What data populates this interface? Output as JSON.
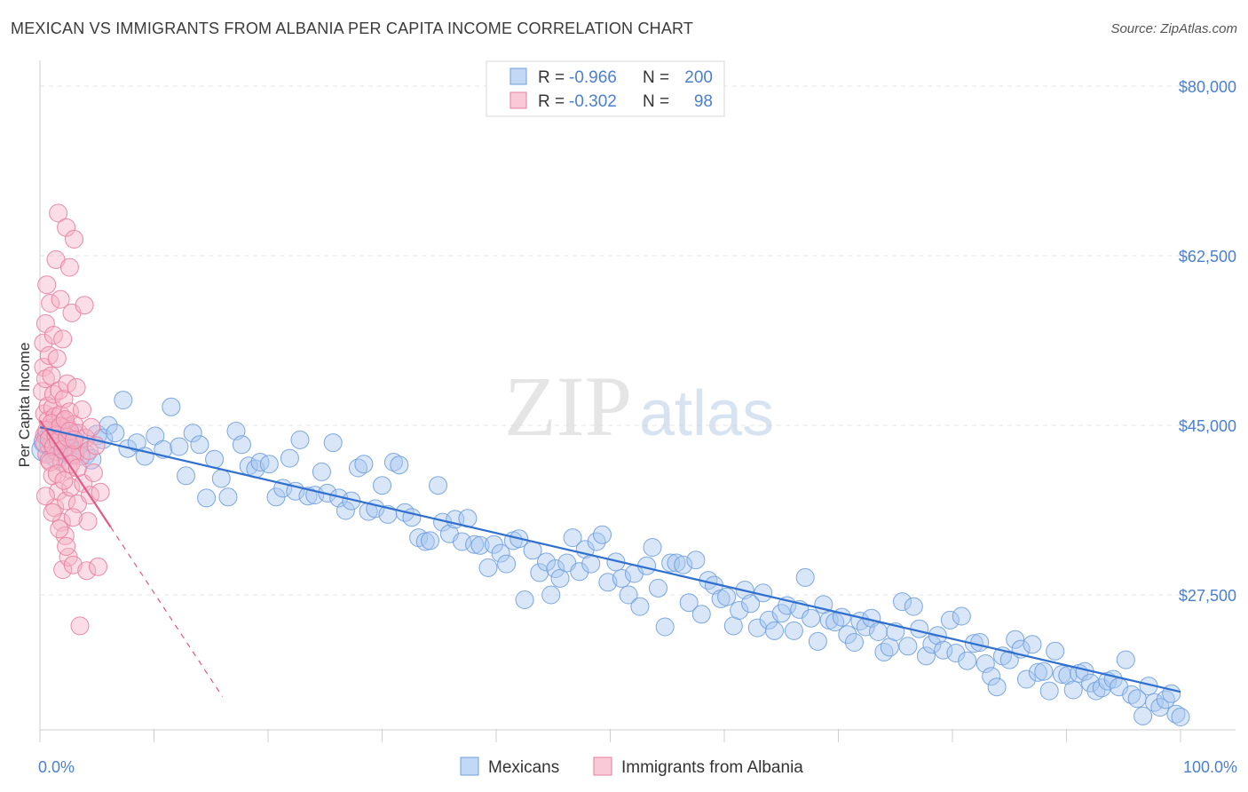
{
  "header": {
    "title": "MEXICAN VS IMMIGRANTS FROM ALBANIA PER CAPITA INCOME CORRELATION CHART",
    "source": "Source: ZipAtlas.com"
  },
  "watermark": {
    "part1": "ZIP",
    "part2": "atlas"
  },
  "stats": [
    {
      "r_label": "R = ",
      "r_value": "-0.966",
      "n_label": "N = ",
      "n_value": "200",
      "color": "#a8c8f0"
    },
    {
      "r_label": "R = ",
      "r_value": "-0.302",
      "n_label": "N = ",
      "n_value": "98",
      "color": "#f5b4c8"
    }
  ],
  "chart_data": {
    "type": "scatter",
    "ylabel": "Per Capita Income",
    "xlim": [
      0,
      100
    ],
    "ylim": [
      13000,
      84000
    ],
    "x_tick_labels": [
      "0.0%",
      "100.0%"
    ],
    "y_ticks": [
      {
        "value": 80000,
        "label": "$80,000"
      },
      {
        "value": 62500,
        "label": "$62,500"
      },
      {
        "value": 45000,
        "label": "$45,000"
      },
      {
        "value": 27500,
        "label": "$27,500"
      }
    ],
    "legend_position": "bottom",
    "grid": true,
    "series": [
      {
        "name": "Mexicans",
        "color": "#a8c8f0",
        "stroke": "#6f9fdc",
        "trend_color": "#2f6fd0",
        "trend": {
          "x0": 0,
          "y0": 44800,
          "x1": 100,
          "y1": 17500,
          "dashed_to": null
        },
        "points": [
          [
            0.3,
            42500
          ],
          [
            0.5,
            43300
          ],
          [
            0.8,
            44000
          ],
          [
            1.0,
            43000
          ],
          [
            1.2,
            44200
          ],
          [
            1.5,
            41800
          ],
          [
            1.8,
            43600
          ],
          [
            2.0,
            42800
          ],
          [
            2.3,
            43900
          ],
          [
            2.6,
            42200
          ],
          [
            3.0,
            44100
          ],
          [
            3.4,
            43000
          ],
          [
            4.0,
            42000
          ],
          [
            4.5,
            41500
          ],
          [
            5.0,
            44000
          ],
          [
            5.5,
            43600
          ],
          [
            6.0,
            45000
          ],
          [
            6.6,
            44200
          ],
          [
            7.3,
            47600
          ],
          [
            7.7,
            42600
          ],
          [
            8.5,
            43200
          ],
          [
            9.2,
            41800
          ],
          [
            10.1,
            43900
          ],
          [
            10.8,
            42500
          ],
          [
            11.5,
            46900
          ],
          [
            12.2,
            42800
          ],
          [
            12.8,
            39800
          ],
          [
            13.4,
            44200
          ],
          [
            14.0,
            43000
          ],
          [
            14.6,
            37500
          ],
          [
            15.3,
            41500
          ],
          [
            15.9,
            39500
          ],
          [
            16.5,
            37600
          ],
          [
            17.2,
            44400
          ],
          [
            17.7,
            43000
          ],
          [
            18.3,
            40800
          ],
          [
            18.9,
            40500
          ],
          [
            19.3,
            41200
          ],
          [
            20.1,
            41000
          ],
          [
            20.7,
            37600
          ],
          [
            21.3,
            38500
          ],
          [
            21.9,
            41600
          ],
          [
            22.4,
            38200
          ],
          [
            22.8,
            43500
          ],
          [
            23.5,
            37700
          ],
          [
            24.1,
            37800
          ],
          [
            24.7,
            40200
          ],
          [
            25.2,
            38000
          ],
          [
            25.7,
            43200
          ],
          [
            26.2,
            37500
          ],
          [
            26.8,
            36200
          ],
          [
            27.3,
            37200
          ],
          [
            27.9,
            40600
          ],
          [
            28.4,
            41000
          ],
          [
            28.8,
            36100
          ],
          [
            29.4,
            36400
          ],
          [
            30.0,
            38800
          ],
          [
            30.5,
            35800
          ],
          [
            31.0,
            41200
          ],
          [
            31.5,
            40900
          ],
          [
            32.0,
            36000
          ],
          [
            32.6,
            35500
          ],
          [
            33.2,
            33400
          ],
          [
            33.8,
            33000
          ],
          [
            34.2,
            33100
          ],
          [
            34.9,
            38800
          ],
          [
            35.3,
            35000
          ],
          [
            35.9,
            33800
          ],
          [
            36.4,
            35300
          ],
          [
            37.0,
            33000
          ],
          [
            37.5,
            35400
          ],
          [
            38.1,
            32700
          ],
          [
            38.6,
            32600
          ],
          [
            39.3,
            30300
          ],
          [
            39.8,
            32700
          ],
          [
            40.4,
            31800
          ],
          [
            40.9,
            30700
          ],
          [
            41.5,
            33100
          ],
          [
            42.0,
            33300
          ],
          [
            42.5,
            27000
          ],
          [
            43.2,
            32100
          ],
          [
            43.8,
            29800
          ],
          [
            44.4,
            30900
          ],
          [
            44.8,
            27500
          ],
          [
            45.2,
            30200
          ],
          [
            45.6,
            29200
          ],
          [
            46.2,
            30800
          ],
          [
            46.7,
            33400
          ],
          [
            47.3,
            29900
          ],
          [
            47.8,
            32200
          ],
          [
            48.3,
            30700
          ],
          [
            48.8,
            33000
          ],
          [
            49.3,
            33700
          ],
          [
            49.8,
            28800
          ],
          [
            50.5,
            30900
          ],
          [
            51.0,
            29200
          ],
          [
            51.6,
            27500
          ],
          [
            52.1,
            29700
          ],
          [
            52.6,
            26300
          ],
          [
            53.2,
            30500
          ],
          [
            53.7,
            32400
          ],
          [
            54.2,
            28200
          ],
          [
            54.8,
            24200
          ],
          [
            55.3,
            30800
          ],
          [
            55.8,
            30800
          ],
          [
            56.4,
            30600
          ],
          [
            56.9,
            26700
          ],
          [
            57.5,
            31100
          ],
          [
            58.0,
            25500
          ],
          [
            58.6,
            29000
          ],
          [
            59.1,
            28500
          ],
          [
            59.7,
            27100
          ],
          [
            60.2,
            27300
          ],
          [
            60.8,
            24300
          ],
          [
            61.3,
            25900
          ],
          [
            61.8,
            28000
          ],
          [
            62.3,
            26600
          ],
          [
            62.9,
            24100
          ],
          [
            63.4,
            27700
          ],
          [
            63.9,
            24900
          ],
          [
            64.4,
            23800
          ],
          [
            65.0,
            25600
          ],
          [
            65.5,
            26400
          ],
          [
            66.1,
            23800
          ],
          [
            66.6,
            26000
          ],
          [
            67.1,
            29300
          ],
          [
            67.6,
            25100
          ],
          [
            68.2,
            22700
          ],
          [
            68.7,
            26500
          ],
          [
            69.2,
            24900
          ],
          [
            69.7,
            24700
          ],
          [
            70.3,
            25200
          ],
          [
            70.8,
            23400
          ],
          [
            71.4,
            22600
          ],
          [
            71.9,
            24800
          ],
          [
            72.4,
            24200
          ],
          [
            72.9,
            25100
          ],
          [
            73.5,
            23700
          ],
          [
            74.0,
            21600
          ],
          [
            74.5,
            22100
          ],
          [
            75.0,
            23700
          ],
          [
            75.6,
            26800
          ],
          [
            76.1,
            22200
          ],
          [
            76.6,
            26300
          ],
          [
            77.1,
            24000
          ],
          [
            77.7,
            21200
          ],
          [
            78.2,
            22400
          ],
          [
            78.7,
            23300
          ],
          [
            79.2,
            21800
          ],
          [
            79.8,
            24900
          ],
          [
            80.3,
            21500
          ],
          [
            80.8,
            25300
          ],
          [
            81.3,
            20700
          ],
          [
            81.9,
            22500
          ],
          [
            82.4,
            22600
          ],
          [
            82.9,
            20400
          ],
          [
            83.4,
            19100
          ],
          [
            83.9,
            18000
          ],
          [
            84.4,
            21200
          ],
          [
            85.0,
            20800
          ],
          [
            85.5,
            22900
          ],
          [
            86.0,
            21900
          ],
          [
            86.5,
            18800
          ],
          [
            87.0,
            22400
          ],
          [
            87.5,
            19500
          ],
          [
            88.0,
            19600
          ],
          [
            88.5,
            17600
          ],
          [
            89.0,
            21700
          ],
          [
            89.6,
            19300
          ],
          [
            90.1,
            19200
          ],
          [
            90.6,
            17700
          ],
          [
            91.1,
            19400
          ],
          [
            91.6,
            19600
          ],
          [
            92.1,
            18400
          ],
          [
            92.6,
            17600
          ],
          [
            93.1,
            17900
          ],
          [
            93.6,
            18600
          ],
          [
            94.1,
            18800
          ],
          [
            94.6,
            18000
          ],
          [
            95.2,
            20800
          ],
          [
            95.7,
            17200
          ],
          [
            96.2,
            16800
          ],
          [
            96.7,
            15000
          ],
          [
            97.2,
            18100
          ],
          [
            97.7,
            16400
          ],
          [
            98.2,
            15900
          ],
          [
            98.7,
            16700
          ],
          [
            99.2,
            17300
          ],
          [
            99.6,
            15200
          ],
          [
            100.0,
            14900
          ]
        ]
      },
      {
        "name": "Immigrants from Albania",
        "color": "#f5b4c8",
        "stroke": "#e87ea0",
        "trend_color": "#e05a87",
        "trend": {
          "x0": 0,
          "y0": 45500,
          "x1": 6.2,
          "y1": 34500,
          "dashed_to": [
            16,
            17000
          ]
        },
        "points": [
          [
            0.2,
            48500
          ],
          [
            0.3,
            51000
          ],
          [
            0.3,
            53500
          ],
          [
            0.4,
            46200
          ],
          [
            0.4,
            44000
          ],
          [
            0.5,
            55500
          ],
          [
            0.5,
            49800
          ],
          [
            0.6,
            42000
          ],
          [
            0.6,
            59500
          ],
          [
            0.7,
            47000
          ],
          [
            0.7,
            45500
          ],
          [
            0.8,
            52200
          ],
          [
            0.8,
            41400
          ],
          [
            0.9,
            57600
          ],
          [
            0.9,
            44700
          ],
          [
            1.0,
            50100
          ],
          [
            1.0,
            43100
          ],
          [
            1.1,
            46800
          ],
          [
            1.1,
            39800
          ],
          [
            1.2,
            54300
          ],
          [
            1.2,
            48200
          ],
          [
            1.3,
            36500
          ],
          [
            1.3,
            45900
          ],
          [
            1.4,
            62100
          ],
          [
            1.4,
            42300
          ],
          [
            1.5,
            51900
          ],
          [
            1.5,
            44600
          ],
          [
            1.6,
            66900
          ],
          [
            1.6,
            38200
          ],
          [
            1.7,
            48600
          ],
          [
            1.7,
            43900
          ],
          [
            1.8,
            58000
          ],
          [
            1.8,
            46100
          ],
          [
            1.9,
            35000
          ],
          [
            1.9,
            41200
          ],
          [
            2.0,
            53900
          ],
          [
            2.0,
            30100
          ],
          [
            2.1,
            45400
          ],
          [
            2.1,
            47700
          ],
          [
            2.2,
            33600
          ],
          [
            2.2,
            42700
          ],
          [
            2.3,
            65400
          ],
          [
            2.3,
            37200
          ],
          [
            2.4,
            44900
          ],
          [
            2.4,
            49300
          ],
          [
            2.5,
            40500
          ],
          [
            2.5,
            31400
          ],
          [
            2.6,
            61300
          ],
          [
            2.6,
            46400
          ],
          [
            2.7,
            38600
          ],
          [
            2.8,
            43300
          ],
          [
            2.8,
            56600
          ],
          [
            2.9,
            30600
          ],
          [
            3.0,
            45100
          ],
          [
            3.0,
            64200
          ],
          [
            3.1,
            42000
          ],
          [
            3.2,
            48900
          ],
          [
            3.3,
            36900
          ],
          [
            3.4,
            44200
          ],
          [
            3.5,
            24300
          ],
          [
            3.6,
            41800
          ],
          [
            3.7,
            46600
          ],
          [
            3.8,
            39000
          ],
          [
            3.9,
            57400
          ],
          [
            4.0,
            43700
          ],
          [
            4.1,
            30000
          ],
          [
            4.2,
            35100
          ],
          [
            4.3,
            42400
          ],
          [
            4.4,
            37800
          ],
          [
            4.5,
            44800
          ],
          [
            4.7,
            40100
          ],
          [
            4.9,
            42900
          ],
          [
            5.1,
            30400
          ],
          [
            5.3,
            38100
          ],
          [
            0.4,
            43200
          ],
          [
            0.6,
            44500
          ],
          [
            0.8,
            43600
          ],
          [
            1.0,
            45200
          ],
          [
            1.2,
            42800
          ],
          [
            1.4,
            44000
          ],
          [
            1.6,
            43400
          ],
          [
            1.8,
            44900
          ],
          [
            2.0,
            42500
          ],
          [
            2.2,
            45600
          ],
          [
            2.4,
            43800
          ],
          [
            2.6,
            44400
          ],
          [
            2.8,
            41900
          ],
          [
            3.0,
            43500
          ],
          [
            0.9,
            41200
          ],
          [
            1.5,
            40000
          ],
          [
            2.1,
            39300
          ],
          [
            2.7,
            41000
          ],
          [
            3.3,
            40600
          ],
          [
            0.5,
            37700
          ],
          [
            1.1,
            36000
          ],
          [
            1.7,
            34300
          ],
          [
            2.3,
            32500
          ],
          [
            2.9,
            35500
          ]
        ]
      }
    ]
  }
}
